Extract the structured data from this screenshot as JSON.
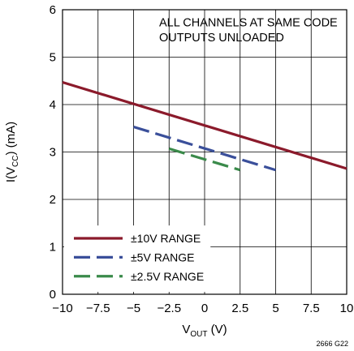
{
  "chart_data": {
    "type": "line",
    "xlabel": {
      "main": "V",
      "sub": "OUT",
      "unit": " (V)"
    },
    "ylabel": {
      "pre": "I(V",
      "sub": "CC",
      "post": ") (mA)"
    },
    "xlim": [
      -10,
      10
    ],
    "ylim": [
      0,
      6
    ],
    "xticks": [
      -10,
      -7.5,
      -5,
      -2.5,
      0,
      2.5,
      5,
      7.5,
      10
    ],
    "xtick_labels": [
      "−10",
      "−7.5",
      "−5",
      "−2.5",
      "0",
      "2.5",
      "5",
      "7.5",
      "10"
    ],
    "yticks": [
      0,
      1,
      2,
      3,
      4,
      5,
      6
    ],
    "ytick_labels": [
      "0",
      "1",
      "2",
      "3",
      "4",
      "5",
      "6"
    ],
    "grid": true,
    "legend_position": "bottom-left",
    "annotation": [
      "ALL CHANNELS AT SAME CODE",
      "OUTPUTS UNLOADED"
    ],
    "figure_id": "2666 G22",
    "series": [
      {
        "name": "±10V RANGE",
        "color": "#8b1a2b",
        "style": "solid",
        "x": [
          -10,
          10
        ],
        "y": [
          4.47,
          2.65
        ]
      },
      {
        "name": "±5V RANGE",
        "color": "#3a4f9a",
        "style": "dashed",
        "x": [
          -5,
          5
        ],
        "y": [
          3.53,
          2.62
        ]
      },
      {
        "name": "±2.5V RANGE",
        "color": "#3a8a4a",
        "style": "dashed",
        "x": [
          -2.5,
          2.5
        ],
        "y": [
          3.07,
          2.62
        ]
      }
    ]
  }
}
